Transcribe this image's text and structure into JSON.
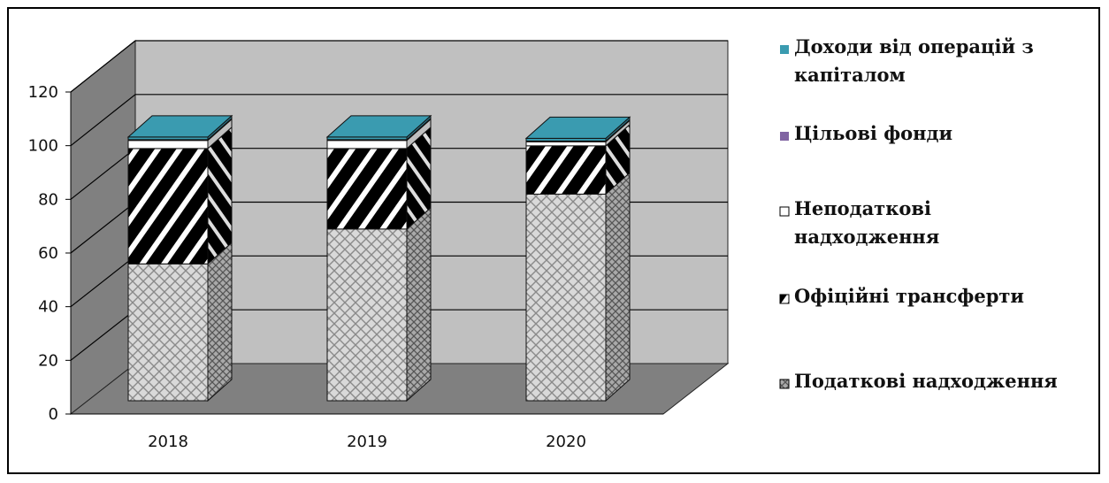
{
  "chart_data": {
    "type": "bar",
    "stacked": true,
    "three_d": true,
    "categories": [
      "2018",
      "2019",
      "2020"
    ],
    "ylim": [
      0,
      120
    ],
    "yticks": [
      0,
      20,
      40,
      60,
      80,
      100,
      120
    ],
    "grid": true,
    "legend_position": "right",
    "series": [
      {
        "name": "Податкові надходження",
        "values": [
          51,
          64,
          77
        ],
        "color": "#cfcfcf",
        "pattern": "crosshatch"
      },
      {
        "name": "Офіційні трансферти",
        "values": [
          43,
          30,
          18
        ],
        "color": "#000000",
        "pattern": "diagonal-stripes"
      },
      {
        "name": "Неподаткові надходження",
        "values": [
          3,
          3,
          1.5
        ],
        "color": "#ffffff",
        "pattern": "none"
      },
      {
        "name": "Цільові фонди",
        "values": [
          0.3,
          0.3,
          0.3
        ],
        "color": "#8064a2",
        "pattern": "none"
      },
      {
        "name": "Доходи від операцій з капіталом",
        "values": [
          1,
          1,
          1
        ],
        "color": "#3a9bb0",
        "pattern": "none"
      }
    ],
    "legend": [
      {
        "lines": [
          "Доходи від операцій з",
          "капіталом"
        ],
        "series_index": 4
      },
      {
        "lines": [
          "Цільові фонди"
        ],
        "series_index": 3
      },
      {
        "lines": [
          "Неподаткові",
          "надходження"
        ],
        "series_index": 2
      },
      {
        "lines": [
          "Офіційні трансферти"
        ],
        "series_index": 1
      },
      {
        "lines": [
          "Податкові надходження"
        ],
        "series_index": 0
      }
    ]
  }
}
